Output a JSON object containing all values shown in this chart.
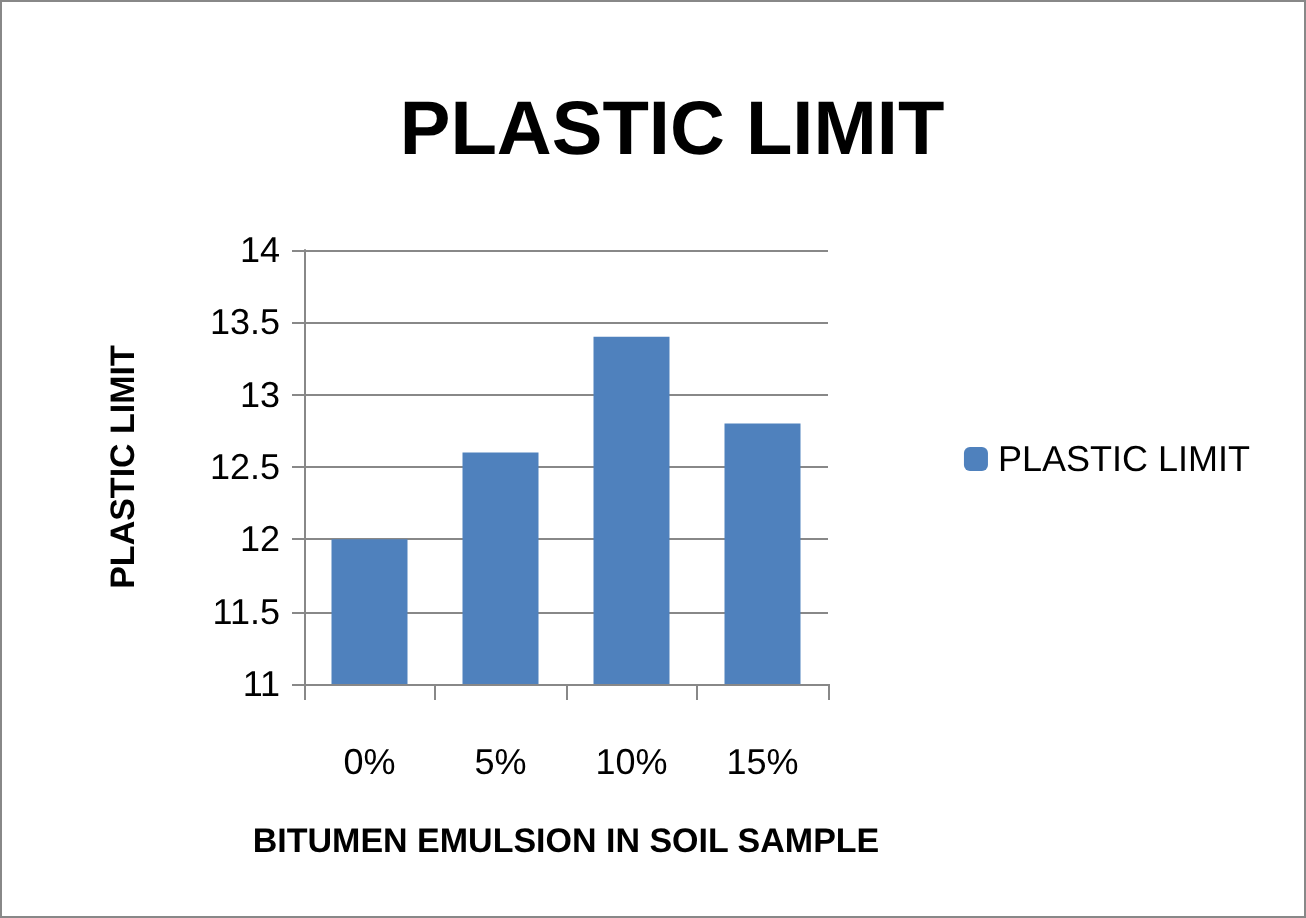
{
  "chart_data": {
    "type": "bar",
    "title": "PLASTIC LIMIT",
    "xlabel": "BITUMEN EMULSION IN SOIL SAMPLE",
    "ylabel": "PLASTIC LIMIT",
    "categories": [
      "0%",
      "5%",
      "10%",
      "15%"
    ],
    "series": [
      {
        "name": "PLASTIC LIMIT",
        "color": "#4f81bd",
        "values": [
          12,
          12.6,
          13.4,
          12.8
        ]
      }
    ],
    "ylim": [
      11,
      14
    ],
    "yticks": [
      11,
      11.5,
      12,
      12.5,
      13,
      13.5,
      14
    ],
    "grid": "y",
    "legend": "right"
  }
}
